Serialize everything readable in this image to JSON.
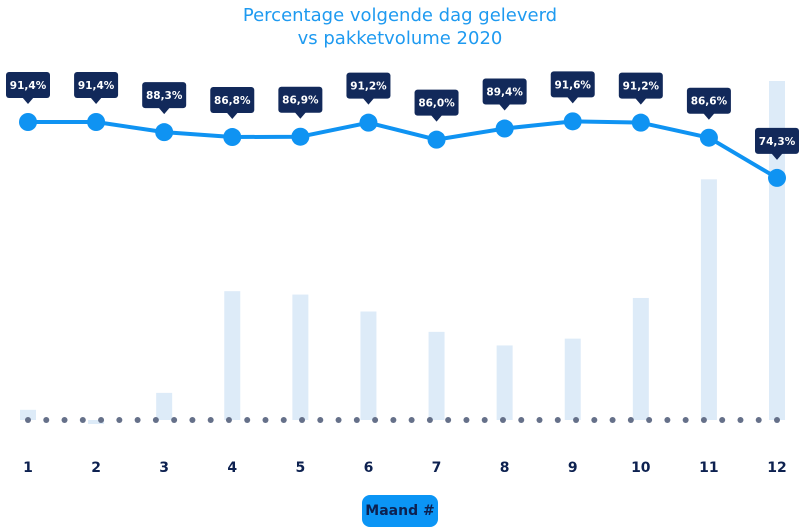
{
  "chart_data": {
    "type": "bar+line",
    "title": "Percentage volgende dag geleverd",
    "subtitle": "vs pakketvolume 2020",
    "xlabel": "Maand #",
    "categories": [
      "1",
      "2",
      "3",
      "4",
      "5",
      "6",
      "7",
      "8",
      "9",
      "10",
      "11",
      "12"
    ],
    "series": [
      {
        "type": "line",
        "values": [
          91.4,
          91.4,
          88.3,
          86.8,
          86.9,
          91.2,
          86.0,
          89.4,
          91.6,
          91.2,
          86.6,
          74.3
        ],
        "labels": [
          "91,4%",
          "91,4%",
          "88,3%",
          "86,8%",
          "86,9%",
          "91,2%",
          "86,0%",
          "89,4%",
          "91,6%",
          "91,2%",
          "86,6%",
          "74,3%"
        ],
        "color": "#0f93f2"
      },
      {
        "type": "bar",
        "values_relative": [
          3,
          -1,
          8,
          38,
          37,
          32,
          26,
          22,
          24,
          36,
          71,
          100
        ],
        "color": "#ddebf8"
      }
    ],
    "y_axis_shown": false,
    "grid": false,
    "label_box_color": "#12295a"
  }
}
